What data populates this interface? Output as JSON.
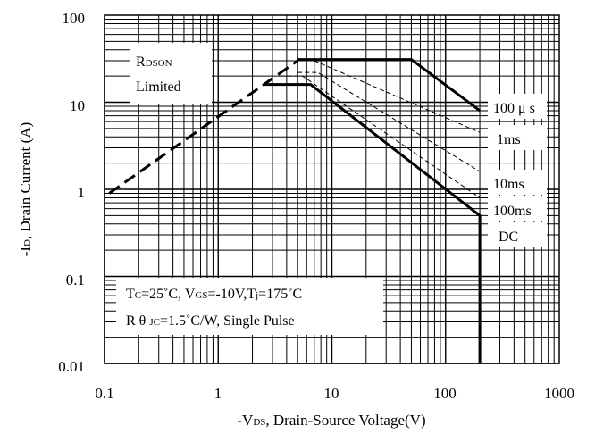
{
  "chart_data": {
    "type": "line",
    "x_scale": "log",
    "y_scale": "log",
    "xlim": [
      0.1,
      1000
    ],
    "ylim": [
      0.01,
      100
    ],
    "grid": true,
    "x_ticks": [
      "0.1",
      "1",
      "10",
      "100",
      "1000"
    ],
    "y_ticks": [
      "100",
      "10",
      "1",
      "0.1",
      "0.01"
    ],
    "xlabel": {
      "prefix": "-V",
      "sub": "DS",
      "rest": ", Drain-Source Voltage(V)"
    },
    "ylabel": {
      "prefix": "-I",
      "sub": "D",
      "rest": ", Drain Current (A)"
    },
    "series": [
      {
        "name": "RDSON Limited",
        "style": "dashed-thick",
        "x": [
          0.11,
          5
        ],
        "y": [
          0.9,
          30
        ]
      },
      {
        "name": "100μs",
        "style": "solid-thick",
        "x": [
          5,
          50,
          200
        ],
        "y": [
          31,
          31,
          8
        ]
      },
      {
        "name": "1ms",
        "style": "dashed-thin",
        "x": [
          7,
          200
        ],
        "y": [
          30,
          4.5
        ]
      },
      {
        "name": "10ms",
        "style": "dashed-thin",
        "x": [
          5,
          7.5,
          200
        ],
        "y": [
          22,
          22,
          1.6
        ]
      },
      {
        "name": "100ms",
        "style": "dashed-thin",
        "x": [
          3.5,
          5.5,
          200
        ],
        "y": [
          20,
          20,
          0.8
        ]
      },
      {
        "name": "DC",
        "style": "solid-thick",
        "x": [
          2.5,
          6.5,
          200,
          200
        ],
        "y": [
          16,
          16,
          0.5,
          0.01
        ]
      }
    ],
    "annotations": {
      "rdson_line1": {
        "big": "R",
        "small": "DSON"
      },
      "rdson_line2": "Limited",
      "label_100us": "100 μ s",
      "label_1ms": "1ms",
      "label_10ms": "10ms",
      "label_100ms": "100ms",
      "label_dc": "DC",
      "cond_line1": {
        "tc": "T",
        "tc_sub": "C",
        "tc_val": "=25˚C, V",
        "vgs_sub": "GS",
        "vgs_val": "=-10V,T",
        "tj_sub": "j",
        "tj_val": "=175˚C"
      },
      "cond_line2": {
        "r": "R θ ",
        "sub": "JC",
        "val": "=1.5˚C/W, Single Pulse"
      }
    }
  }
}
